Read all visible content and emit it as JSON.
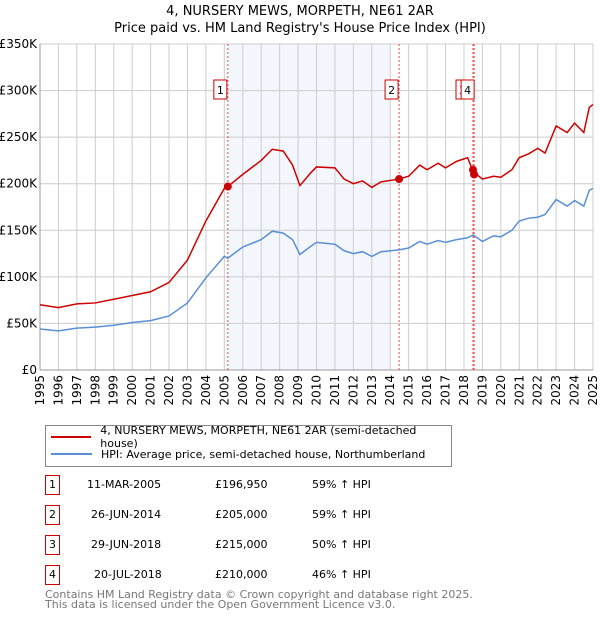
{
  "chart_data": {
    "type": "line",
    "title": "4, NURSERY MEWS, MORPETH, NE61 2AR",
    "subtitle": "Price paid vs. HM Land Registry's House Price Index (HPI)",
    "xlim": [
      1995,
      2025
    ],
    "ylim": [
      0,
      350000
    ],
    "y_ticks": [
      {
        "v": 0,
        "label": "£0"
      },
      {
        "v": 50000,
        "label": "£50K"
      },
      {
        "v": 100000,
        "label": "£100K"
      },
      {
        "v": 150000,
        "label": "£150K"
      },
      {
        "v": 200000,
        "label": "£200K"
      },
      {
        "v": 250000,
        "label": "£250K"
      },
      {
        "v": 300000,
        "label": "£300K"
      },
      {
        "v": 350000,
        "label": "£350K"
      }
    ],
    "x_ticks": [
      "1995",
      "1996",
      "1997",
      "1998",
      "1999",
      "2000",
      "2001",
      "2002",
      "2003",
      "2004",
      "2005",
      "2006",
      "2007",
      "2008",
      "2009",
      "2010",
      "2011",
      "2012",
      "2013",
      "2014",
      "2015",
      "2016",
      "2017",
      "2018",
      "2019",
      "2020",
      "2021",
      "2022",
      "2023",
      "2024",
      "2025"
    ],
    "shaded_range": [
      2005.19,
      2014.0
    ],
    "series": [
      {
        "name": "4, NURSERY MEWS, MORPETH, NE61 2AR (semi-detached house)",
        "color": "#cc0000",
        "x": [
          1995,
          1996,
          1997,
          1998,
          1999,
          2000,
          2001,
          2002,
          2003,
          2004,
          2005,
          2005.19,
          2006,
          2007,
          2007.6,
          2008.2,
          2008.7,
          2009.1,
          2009.7,
          2010,
          2011,
          2011.5,
          2012,
          2012.5,
          2013,
          2013.5,
          2014.48,
          2015,
          2015.6,
          2016,
          2016.6,
          2017,
          2017.6,
          2018.2,
          2018.5,
          2019,
          2019.6,
          2020,
          2020.6,
          2021,
          2021.5,
          2022,
          2022.4,
          2023,
          2023.6,
          2024,
          2024.5,
          2024.8,
          2025
        ],
        "y": [
          70000,
          67000,
          71000,
          72000,
          76000,
          80000,
          84000,
          94000,
          118000,
          160000,
          195000,
          196950,
          210000,
          225000,
          237000,
          235000,
          220000,
          198000,
          212000,
          218000,
          217000,
          205000,
          200000,
          203000,
          196000,
          202000,
          205000,
          208000,
          220000,
          215000,
          222000,
          217000,
          224000,
          228000,
          213000,
          205000,
          208000,
          207000,
          215000,
          228000,
          232000,
          238000,
          233000,
          262000,
          255000,
          265000,
          255000,
          282000,
          285000
        ]
      },
      {
        "name": "HPI: Average price, semi-detached house, Northumberland",
        "color": "#5b8fd4",
        "x": [
          1995,
          1996,
          1997,
          1998,
          1999,
          2000,
          2001,
          2002,
          2003,
          2004,
          2005,
          2005.19,
          2006,
          2007,
          2007.6,
          2008.2,
          2008.7,
          2009.1,
          2009.7,
          2010,
          2011,
          2011.5,
          2012,
          2012.5,
          2013,
          2013.5,
          2014.48,
          2015,
          2015.6,
          2016,
          2016.6,
          2017,
          2017.6,
          2018.2,
          2018.5,
          2019,
          2019.6,
          2020,
          2020.6,
          2021,
          2021.5,
          2022,
          2022.4,
          2023,
          2023.6,
          2024,
          2024.5,
          2024.8,
          2025
        ],
        "y": [
          44000,
          42000,
          45000,
          46000,
          48000,
          51000,
          53000,
          58000,
          72000,
          99000,
          122000,
          120000,
          132000,
          140000,
          149000,
          147000,
          140000,
          124000,
          133000,
          137000,
          135000,
          128000,
          125000,
          127000,
          122000,
          127000,
          129000,
          131000,
          138000,
          135000,
          139000,
          137000,
          140000,
          142000,
          145000,
          138000,
          144000,
          143000,
          150000,
          160000,
          163000,
          164000,
          167000,
          183000,
          176000,
          182000,
          176000,
          193000,
          195000
        ]
      }
    ],
    "sales": [
      {
        "n": "1",
        "x": 2005.19,
        "date": "11-MAR-2005",
        "price": "£196,950",
        "y": 196950,
        "hpi": "59% ↑ HPI"
      },
      {
        "n": "2",
        "x": 2014.48,
        "date": "26-JUN-2014",
        "price": "£205,000",
        "y": 205000,
        "hpi": "59% ↑ HPI"
      },
      {
        "n": "3",
        "x": 2018.49,
        "date": "29-JUN-2018",
        "price": "£215,000",
        "y": 215000,
        "hpi": "50% ↑ HPI"
      },
      {
        "n": "4",
        "x": 2018.55,
        "date": "20-JUL-2018",
        "price": "£210,000",
        "y": 210000,
        "hpi": "46% ↑ HPI"
      }
    ]
  },
  "footer": {
    "line1": "Contains HM Land Registry data © Crown copyright and database right 2025.",
    "line2": "This data is licensed under the Open Government Licence v3.0."
  }
}
